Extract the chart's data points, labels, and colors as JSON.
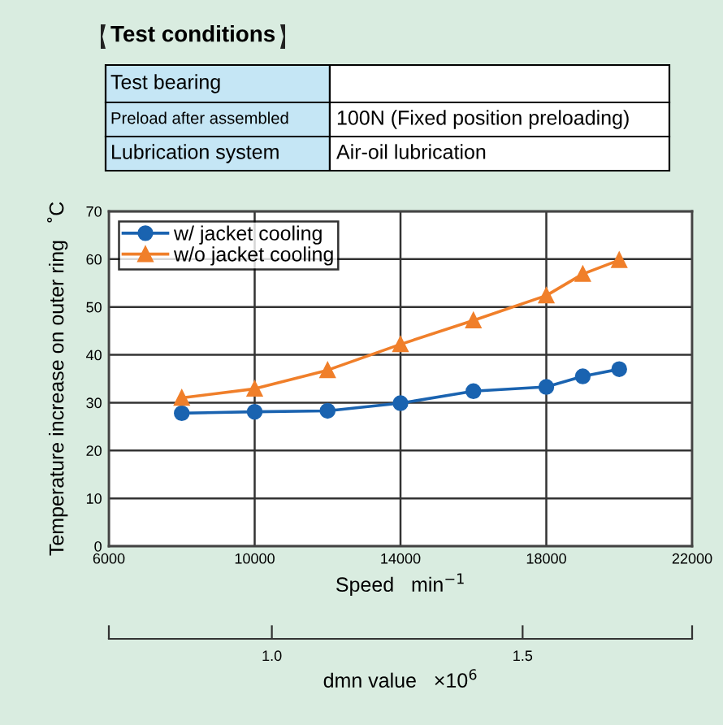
{
  "chart_data": {
    "type": "line",
    "xlabel": "Speed   min$^{−1}$",
    "ylabel": "Temperature increase on outer ring   ˚C",
    "x2label": "dmn value   ×10$^{6}$",
    "annotations": [
      "Test conditions",
      "Test bearing",
      "Preload after assembled",
      "100N (Fixed position preloading)",
      "Lubrication system",
      "Air-oil lubrication"
    ],
    "x": [
      8000,
      10000,
      12000,
      14000,
      16000,
      18000,
      19000,
      20000
    ],
    "series": [
      {
        "name": "w/ jacket cooling",
        "color": "#1a63b0",
        "marker": "circle",
        "values": [
          27.8,
          28.1,
          28.3,
          29.9,
          32.4,
          33.3,
          35.5,
          37.0
        ]
      },
      {
        "name": "w/o jacket cooling",
        "color": "#f07f2a",
        "marker": "triangle",
        "values": [
          31.0,
          32.9,
          36.8,
          42.2,
          47.2,
          52.4,
          56.9,
          59.8
        ]
      }
    ],
    "xlim": [
      6000,
      22000
    ],
    "xticks": [
      6000,
      10000,
      14000,
      18000,
      22000
    ],
    "ylim": [
      0,
      70
    ],
    "yticks": [
      0,
      10,
      20,
      30,
      40,
      50,
      60,
      70
    ],
    "x2lim": [
      0.675,
      1.838
    ],
    "x2ticks": [
      {
        "value": 0.675,
        "label": null
      },
      {
        "value": 1.0,
        "label": "1.0"
      },
      1.5,
      {
        "value": 1.838,
        "label": null
      }
    ],
    "grid": true,
    "legend": "top left",
    "line_style": "solid"
  }
}
